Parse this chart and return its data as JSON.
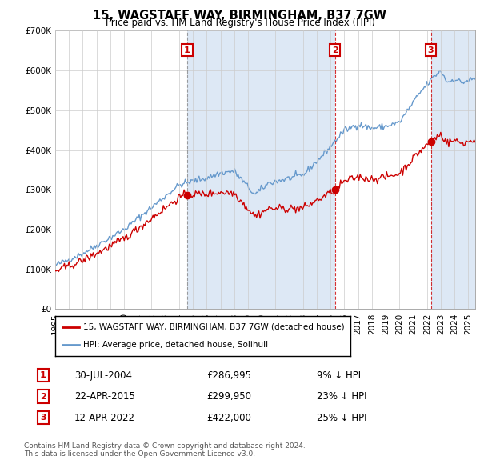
{
  "title": "15, WAGSTAFF WAY, BIRMINGHAM, B37 7GW",
  "subtitle": "Price paid vs. HM Land Registry's House Price Index (HPI)",
  "legend_property": "15, WAGSTAFF WAY, BIRMINGHAM, B37 7GW (detached house)",
  "legend_hpi": "HPI: Average price, detached house, Solihull",
  "sale_points": [
    {
      "label": "1",
      "date": "30-JUL-2004",
      "price": 286995,
      "pct": "9%",
      "x_year": 2004.58,
      "vline_style": "dashed_gray"
    },
    {
      "label": "2",
      "date": "22-APR-2015",
      "price": 299950,
      "pct": "23%",
      "x_year": 2015.31,
      "vline_style": "dashed_red"
    },
    {
      "label": "3",
      "date": "12-APR-2022",
      "price": 422000,
      "pct": "25%",
      "x_year": 2022.28,
      "vline_style": "dashed_red"
    }
  ],
  "table_rows": [
    {
      "num": "1",
      "date": "30-JUL-2004",
      "price": "£286,995",
      "pct": "9% ↓ HPI"
    },
    {
      "num": "2",
      "date": "22-APR-2015",
      "price": "£299,950",
      "pct": "23% ↓ HPI"
    },
    {
      "num": "3",
      "date": "12-APR-2022",
      "price": "£422,000",
      "pct": "25% ↓ HPI"
    }
  ],
  "footnote1": "Contains HM Land Registry data © Crown copyright and database right 2024.",
  "footnote2": "This data is licensed under the Open Government Licence v3.0.",
  "property_color": "#cc0000",
  "hpi_color": "#6699cc",
  "vline_color_gray": "#888888",
  "vline_color_red": "#cc0000",
  "band_color": "#dde8f5",
  "background_color": "#ffffff",
  "grid_color": "#cccccc",
  "ylim": [
    0,
    700000
  ],
  "xlim_start": 1995,
  "xlim_end": 2025.5,
  "fig_width": 6.0,
  "fig_height": 5.9
}
